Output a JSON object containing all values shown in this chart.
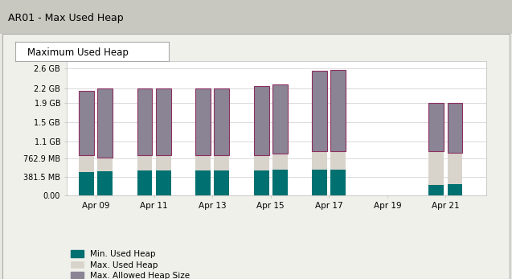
{
  "title": "AR01 - Max Used Heap",
  "tab_label": "Maximum Used Heap",
  "x_labels": [
    "Apr 09",
    "Apr 11",
    "Apr 13",
    "Apr 15",
    "Apr 17",
    "Apr 19",
    "Apr 21"
  ],
  "min_used_heap": [
    480,
    500,
    510,
    510,
    515,
    510,
    515,
    520,
    530,
    530,
    0,
    220,
    230
  ],
  "max_used_heap": [
    820,
    780,
    820,
    820,
    820,
    830,
    820,
    850,
    900,
    900,
    0,
    900,
    870
  ],
  "max_allowed_heap": [
    2150,
    2200,
    2200,
    2200,
    2200,
    2200,
    2250,
    2280,
    2550,
    2580,
    0,
    1900,
    1900
  ],
  "color_min": "#007070",
  "color_max_used": "#d8d4cc",
  "color_allowed": "#8a8494",
  "color_allowed_border": "#8c3060",
  "ytick_mb": [
    0,
    381.5,
    762.9,
    1100,
    1500,
    1900,
    2200,
    2600
  ],
  "ytick_labels": [
    "0.00",
    "381.5 MB",
    "762.9 MB",
    "1.1 GB",
    "1.5 GB",
    "1.9 GB",
    "2.2 GB",
    "2.6 GB"
  ],
  "legend_labels": [
    "Min. Used Heap",
    "Max. Used Heap",
    "Max. Allowed Heap Size"
  ],
  "bg_color": "#e8e8e0",
  "panel_bg": "#f0f0ea",
  "plot_bg": "#ffffff",
  "title_bg": "#c8c8c0",
  "tab_border": "#aaaaaa",
  "ylim_mb": 2750
}
